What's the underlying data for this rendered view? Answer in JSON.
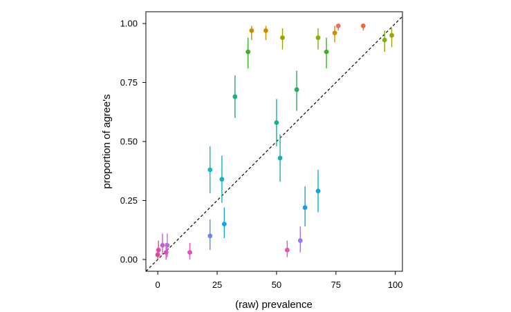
{
  "chart_data": {
    "type": "scatter",
    "title": "",
    "xlabel": "(raw) prevalence",
    "ylabel": "proportion of agree's",
    "xlim": [
      -5,
      103
    ],
    "ylim": [
      -0.05,
      1.05
    ],
    "xticks": [
      0,
      25,
      50,
      75,
      100
    ],
    "xtick_labels": [
      "0",
      "25",
      "50",
      "75",
      "100"
    ],
    "yticks": [
      0,
      0.25,
      0.5,
      0.75,
      1.0
    ],
    "ytick_labels": [
      "0.00",
      "0.25",
      "0.50",
      "0.75",
      "1.00"
    ],
    "grid": false,
    "reference_line": {
      "style": "dashed",
      "slope": 1,
      "description": "y = x / 100"
    },
    "points": [
      {
        "x": 0,
        "y": 0.02,
        "ylo": 0.0,
        "yhi": 0.05,
        "color": "#e8409a"
      },
      {
        "x": 0.3,
        "y": 0.04,
        "ylo": 0.01,
        "yhi": 0.08,
        "color": "#e04aa6"
      },
      {
        "x": 2,
        "y": 0.06,
        "ylo": 0.02,
        "yhi": 0.11,
        "color": "#c95bd2"
      },
      {
        "x": 3.5,
        "y": 0.03,
        "ylo": 0.0,
        "yhi": 0.07,
        "color": "#e046b9"
      },
      {
        "x": 4,
        "y": 0.06,
        "ylo": 0.01,
        "yhi": 0.11,
        "color": "#b86be0"
      },
      {
        "x": 13.5,
        "y": 0.03,
        "ylo": 0.0,
        "yhi": 0.07,
        "color": "#e64dc0"
      },
      {
        "x": 22,
        "y": 0.1,
        "ylo": 0.04,
        "yhi": 0.17,
        "color": "#6a85f2"
      },
      {
        "x": 22,
        "y": 0.38,
        "ylo": 0.28,
        "yhi": 0.48,
        "color": "#12b8c8"
      },
      {
        "x": 27,
        "y": 0.34,
        "ylo": 0.24,
        "yhi": 0.44,
        "color": "#10b4b8"
      },
      {
        "x": 28,
        "y": 0.15,
        "ylo": 0.09,
        "yhi": 0.22,
        "color": "#1aa6e4"
      },
      {
        "x": 32.5,
        "y": 0.69,
        "ylo": 0.6,
        "yhi": 0.78,
        "color": "#1aae80"
      },
      {
        "x": 38,
        "y": 0.88,
        "ylo": 0.81,
        "yhi": 0.94,
        "color": "#3fae2a"
      },
      {
        "x": 39.5,
        "y": 0.97,
        "ylo": 0.93,
        "yhi": 0.99,
        "color": "#cc8a00"
      },
      {
        "x": 45.5,
        "y": 0.97,
        "ylo": 0.93,
        "yhi": 0.99,
        "color": "#cc8a00"
      },
      {
        "x": 50,
        "y": 0.58,
        "ylo": 0.48,
        "yhi": 0.68,
        "color": "#12b09a"
      },
      {
        "x": 51.5,
        "y": 0.43,
        "ylo": 0.33,
        "yhi": 0.53,
        "color": "#12b4a4"
      },
      {
        "x": 52.5,
        "y": 0.94,
        "ylo": 0.89,
        "yhi": 0.98,
        "color": "#a0a100"
      },
      {
        "x": 54.5,
        "y": 0.04,
        "ylo": 0.01,
        "yhi": 0.08,
        "color": "#e64dc0"
      },
      {
        "x": 58.5,
        "y": 0.72,
        "ylo": 0.63,
        "yhi": 0.8,
        "color": "#22b060"
      },
      {
        "x": 60,
        "y": 0.08,
        "ylo": 0.03,
        "yhi": 0.14,
        "color": "#9d78ef"
      },
      {
        "x": 62,
        "y": 0.22,
        "ylo": 0.14,
        "yhi": 0.31,
        "color": "#1a9de2"
      },
      {
        "x": 67.5,
        "y": 0.29,
        "ylo": 0.2,
        "yhi": 0.38,
        "color": "#10a8d8"
      },
      {
        "x": 67.5,
        "y": 0.94,
        "ylo": 0.89,
        "yhi": 0.98,
        "color": "#86aa10"
      },
      {
        "x": 71,
        "y": 0.88,
        "ylo": 0.81,
        "yhi": 0.94,
        "color": "#3fae2a"
      },
      {
        "x": 74.5,
        "y": 0.96,
        "ylo": 0.92,
        "yhi": 0.99,
        "color": "#d48c00"
      },
      {
        "x": 76,
        "y": 0.99,
        "ylo": 0.97,
        "yhi": 1.0,
        "color": "#f4695c"
      },
      {
        "x": 86.5,
        "y": 0.99,
        "ylo": 0.97,
        "yhi": 1.0,
        "color": "#ea6b35"
      },
      {
        "x": 95.5,
        "y": 0.93,
        "ylo": 0.88,
        "yhi": 0.97,
        "color": "#86aa10"
      },
      {
        "x": 98.5,
        "y": 0.95,
        "ylo": 0.9,
        "yhi": 0.98,
        "color": "#9ea400"
      }
    ]
  }
}
